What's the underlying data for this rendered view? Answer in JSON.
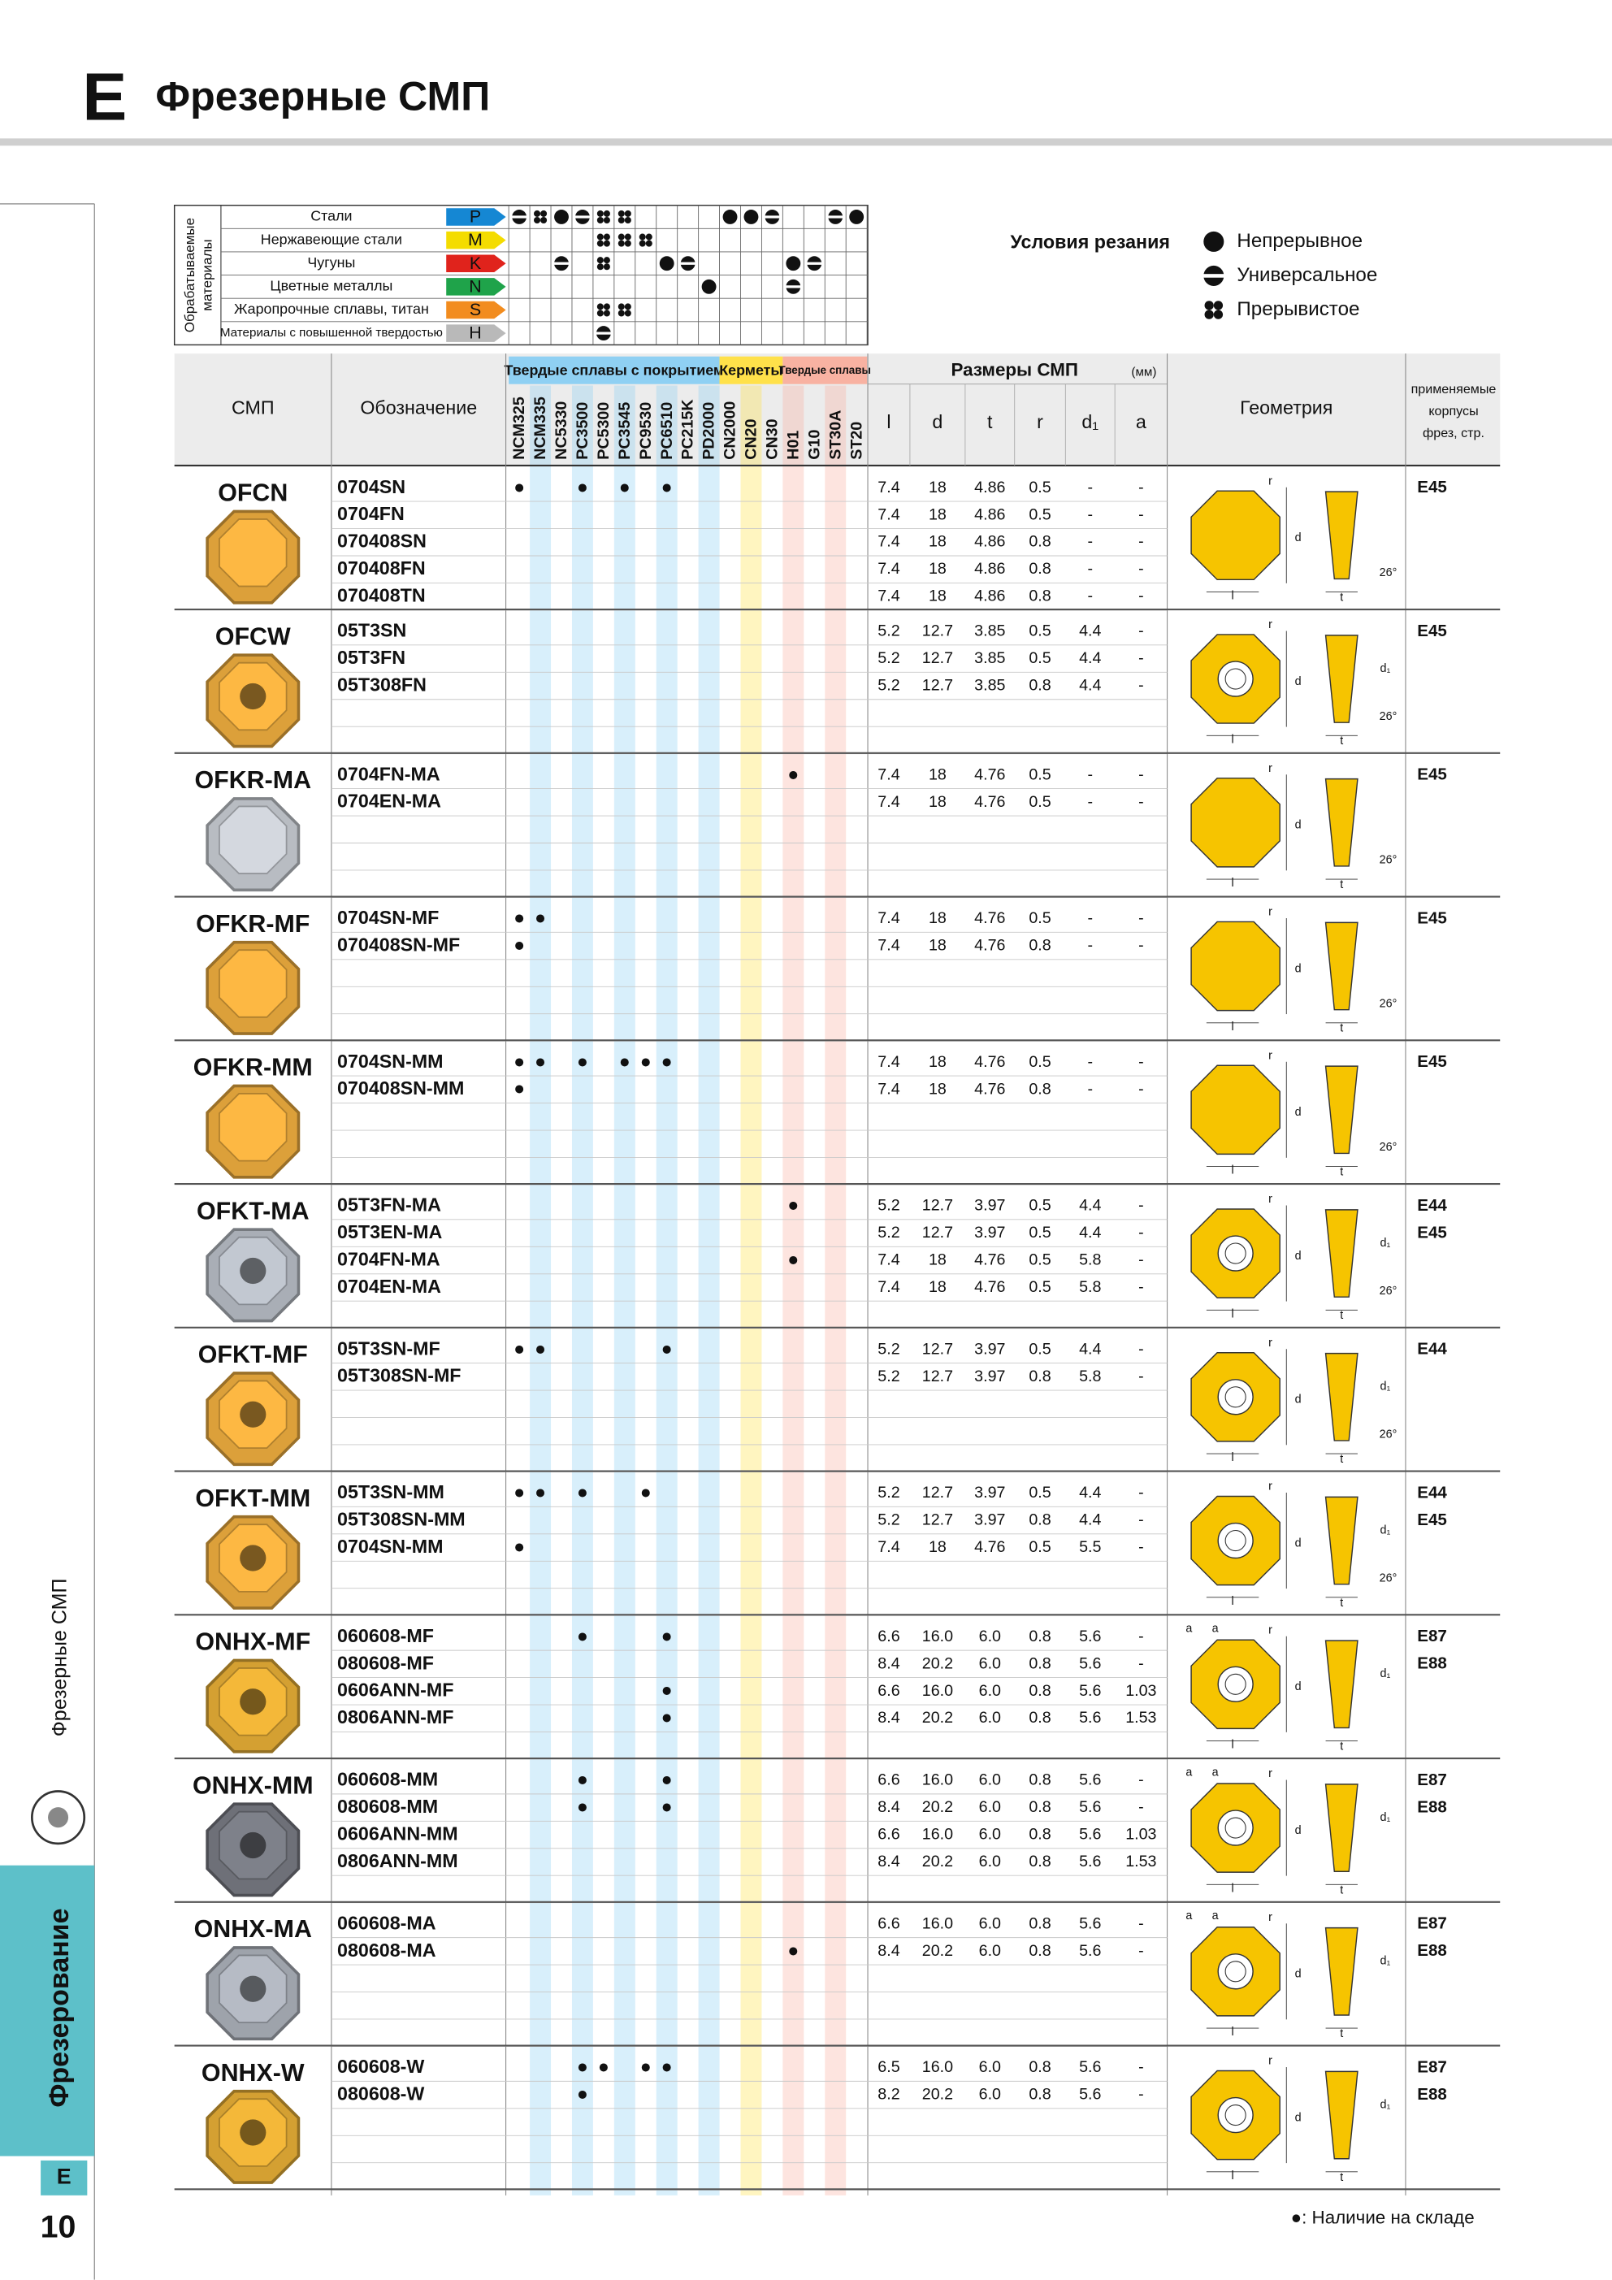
{
  "header": {
    "letter": "E",
    "title": "Фрезерные СМП"
  },
  "sidebar": {
    "section": "Фрезерные СМП",
    "chapter": "Фрезерование",
    "letter": "E",
    "page": "10"
  },
  "materials": {
    "title_lines": [
      "Обрабатываемые",
      "материалы"
    ],
    "rows": [
      {
        "name": "Стали",
        "code": "P",
        "color": "#1587d3",
        "marks": [
          1,
          2,
          0,
          1,
          2,
          2,
          null,
          null,
          null,
          null,
          0,
          0,
          1,
          null,
          null,
          1,
          0
        ]
      },
      {
        "name": "Нержавеющие стали",
        "code": "M",
        "color": "#f4dc00",
        "marks": [
          null,
          null,
          null,
          null,
          2,
          2,
          2,
          null,
          null,
          null,
          null,
          null,
          null,
          null,
          null,
          null,
          null
        ]
      },
      {
        "name": "Чугуны",
        "code": "K",
        "color": "#e0231c",
        "marks": [
          null,
          null,
          1,
          null,
          2,
          null,
          null,
          0,
          1,
          null,
          null,
          null,
          null,
          0,
          1,
          null,
          null
        ]
      },
      {
        "name": "Цветные металлы",
        "code": "N",
        "color": "#1fa34a",
        "marks": [
          null,
          null,
          null,
          null,
          null,
          null,
          null,
          null,
          null,
          0,
          null,
          null,
          null,
          1,
          null,
          null,
          null
        ]
      },
      {
        "name": "Жаропрочные сплавы, титан",
        "code": "S",
        "color": "#f28c1e",
        "marks": [
          null,
          null,
          null,
          null,
          2,
          2,
          null,
          null,
          null,
          null,
          null,
          null,
          null,
          null,
          null,
          null,
          null
        ]
      },
      {
        "name": "Материалы с повышенной твердостью",
        "code": "H",
        "color": "#b9b9b9",
        "marks": [
          null,
          null,
          null,
          null,
          1,
          null,
          null,
          null,
          null,
          null,
          null,
          null,
          null,
          null,
          null,
          null,
          null
        ]
      }
    ]
  },
  "legend": {
    "title": "Условия резания",
    "items": [
      "Непрерывное",
      "Универсальное",
      "Прерывистое"
    ]
  },
  "table": {
    "col_insert": "СМП",
    "col_code": "Обозначение",
    "grade_groups": [
      {
        "label": "Твердые сплавы с покрытием",
        "color": "#8fd0f3",
        "grades": [
          "NCM325",
          "NCM335",
          "NC5330",
          "PC3500",
          "PC5300",
          "PC3545",
          "PC9530",
          "PC6510",
          "PC215K",
          "PD2000"
        ]
      },
      {
        "label": "Керметы",
        "color": "#ffe14a",
        "grades": [
          "CN2000",
          "CN20",
          "CN30"
        ]
      },
      {
        "label": "Твердые сплавы",
        "color": "#f8b2a2",
        "grades": [
          "H01",
          "G10",
          "ST30A",
          "ST20"
        ]
      }
    ],
    "dims_title": "Размеры СМП",
    "dims_unit": "(мм)",
    "dims": [
      "l",
      "d",
      "t",
      "r",
      "d₁",
      "a"
    ],
    "col_geometry": "Геометрия",
    "col_bodies": [
      "применяемые",
      "корпусы",
      "фрез, стр."
    ]
  },
  "products": [
    {
      "name": "OFCN",
      "color": "#dca03a",
      "bodies": [
        "E45"
      ],
      "geometry": [
        "r",
        "d",
        "l",
        "t",
        "26°"
      ],
      "codes": [
        {
          "code": "0704SN",
          "dims": [
            "7.4",
            "18",
            "4.86",
            "0.5",
            "-",
            "-"
          ],
          "stock": [
            "●",
            null,
            null,
            "●",
            null,
            "●",
            null,
            "●",
            null,
            null,
            null,
            null,
            null,
            null,
            null,
            null,
            null
          ]
        },
        {
          "code": "0704FN",
          "dims": [
            "7.4",
            "18",
            "4.86",
            "0.5",
            "-",
            "-"
          ]
        },
        {
          "code": "070408SN",
          "dims": [
            "7.4",
            "18",
            "4.86",
            "0.8",
            "-",
            "-"
          ]
        },
        {
          "code": "070408FN",
          "dims": [
            "7.4",
            "18",
            "4.86",
            "0.8",
            "-",
            "-"
          ]
        },
        {
          "code": "070408TN",
          "dims": [
            "7.4",
            "18",
            "4.86",
            "0.8",
            "-",
            "-"
          ]
        }
      ]
    },
    {
      "name": "OFCW",
      "color": "#dca03a",
      "bodies": [
        "E45"
      ],
      "geometry": [
        "r",
        "d",
        "d₁",
        "l",
        "t",
        "26°"
      ],
      "codes": [
        {
          "code": "05T3SN",
          "dims": [
            "5.2",
            "12.7",
            "3.85",
            "0.5",
            "4.4",
            "-"
          ]
        },
        {
          "code": "05T3FN",
          "dims": [
            "5.2",
            "12.7",
            "3.85",
            "0.5",
            "4.4",
            "-"
          ]
        },
        {
          "code": "05T308FN",
          "dims": [
            "5.2",
            "12.7",
            "3.85",
            "0.8",
            "4.4",
            "-"
          ]
        }
      ]
    },
    {
      "name": "OFKR-MA",
      "color": "#b8bcc2",
      "bodies": [
        "E45"
      ],
      "geometry": [
        "r",
        "d",
        "l",
        "t",
        "26°"
      ],
      "codes": [
        {
          "code": "0704FN-MA",
          "dims": [
            "7.4",
            "18",
            "4.76",
            "0.5",
            "-",
            "-"
          ],
          "stock": [
            null,
            null,
            null,
            null,
            null,
            null,
            null,
            null,
            null,
            null,
            null,
            null,
            null,
            "●",
            null,
            null,
            null
          ]
        },
        {
          "code": "0704EN-MA",
          "dims": [
            "7.4",
            "18",
            "4.76",
            "0.5",
            "-",
            "-"
          ]
        }
      ]
    },
    {
      "name": "OFKR-MF",
      "color": "#dca03a",
      "bodies": [
        "E45"
      ],
      "geometry": [
        "r",
        "d",
        "l",
        "t",
        "26°"
      ],
      "codes": [
        {
          "code": "0704SN-MF",
          "dims": [
            "7.4",
            "18",
            "4.76",
            "0.5",
            "-",
            "-"
          ],
          "stock": [
            "●",
            "●",
            null,
            null,
            null,
            null,
            null,
            null,
            null,
            null,
            null,
            null,
            null,
            null,
            null,
            null,
            null
          ]
        },
        {
          "code": "070408SN-MF",
          "dims": [
            "7.4",
            "18",
            "4.76",
            "0.8",
            "-",
            "-"
          ],
          "stock": [
            "●",
            null,
            null,
            null,
            null,
            null,
            null,
            null,
            null,
            null,
            null,
            null,
            null,
            null,
            null,
            null,
            null
          ]
        }
      ]
    },
    {
      "name": "OFKR-MM",
      "color": "#dca03a",
      "bodies": [
        "E45"
      ],
      "geometry": [
        "r",
        "d",
        "l",
        "t",
        "26°"
      ],
      "codes": [
        {
          "code": "0704SN-MM",
          "dims": [
            "7.4",
            "18",
            "4.76",
            "0.5",
            "-",
            "-"
          ],
          "stock": [
            "●",
            "●",
            null,
            "●",
            null,
            "●",
            "●",
            "●",
            null,
            null,
            null,
            null,
            null,
            null,
            null,
            null,
            null
          ]
        },
        {
          "code": "070408SN-MM",
          "dims": [
            "7.4",
            "18",
            "4.76",
            "0.8",
            "-",
            "-"
          ],
          "stock": [
            "●",
            null,
            null,
            null,
            null,
            null,
            null,
            null,
            null,
            null,
            null,
            null,
            null,
            null,
            null,
            null,
            null
          ]
        }
      ]
    },
    {
      "name": "OFKT-MA",
      "color": "#a9aeb6",
      "bodies": [
        "E44",
        "E45"
      ],
      "geometry": [
        "r",
        "d",
        "d₁",
        "l",
        "t",
        "26°"
      ],
      "codes": [
        {
          "code": "05T3FN-MA",
          "dims": [
            "5.2",
            "12.7",
            "3.97",
            "0.5",
            "4.4",
            "-"
          ],
          "stock": [
            null,
            null,
            null,
            null,
            null,
            null,
            null,
            null,
            null,
            null,
            null,
            null,
            null,
            "●",
            null,
            null,
            null
          ]
        },
        {
          "code": "05T3EN-MA",
          "dims": [
            "5.2",
            "12.7",
            "3.97",
            "0.5",
            "4.4",
            "-"
          ]
        },
        {
          "code": "0704FN-MA",
          "dims": [
            "7.4",
            "18",
            "4.76",
            "0.5",
            "5.8",
            "-"
          ],
          "stock": [
            null,
            null,
            null,
            null,
            null,
            null,
            null,
            null,
            null,
            null,
            null,
            null,
            null,
            "●",
            null,
            null,
            null
          ]
        },
        {
          "code": "0704EN-MA",
          "dims": [
            "7.4",
            "18",
            "4.76",
            "0.5",
            "5.8",
            "-"
          ]
        }
      ]
    },
    {
      "name": "OFKT-MF",
      "color": "#dca03a",
      "bodies": [
        "E44"
      ],
      "geometry": [
        "r",
        "d",
        "d₁",
        "l",
        "t",
        "26°"
      ],
      "codes": [
        {
          "code": "05T3SN-MF",
          "dims": [
            "5.2",
            "12.7",
            "3.97",
            "0.5",
            "4.4",
            "-"
          ],
          "stock": [
            "●",
            "●",
            null,
            null,
            null,
            null,
            null,
            "●",
            null,
            null,
            null,
            null,
            null,
            null,
            null,
            null,
            null
          ]
        },
        {
          "code": "05T308SN-MF",
          "dims": [
            "5.2",
            "12.7",
            "3.97",
            "0.8",
            "5.8",
            "-"
          ]
        }
      ]
    },
    {
      "name": "OFKT-MM",
      "color": "#dca03a",
      "bodies": [
        "E44",
        "E45"
      ],
      "geometry": [
        "r",
        "d",
        "d₁",
        "l",
        "t",
        "26°"
      ],
      "codes": [
        {
          "code": "05T3SN-MM",
          "dims": [
            "5.2",
            "12.7",
            "3.97",
            "0.5",
            "4.4",
            "-"
          ],
          "stock": [
            "●",
            "●",
            null,
            "●",
            null,
            null,
            "●",
            null,
            null,
            null,
            null,
            null,
            null,
            null,
            null,
            null,
            null
          ]
        },
        {
          "code": "05T308SN-MM",
          "dims": [
            "5.2",
            "12.7",
            "3.97",
            "0.8",
            "4.4",
            "-"
          ]
        },
        {
          "code": "0704SN-MM",
          "dims": [
            "7.4",
            "18",
            "4.76",
            "0.5",
            "5.5",
            "-"
          ],
          "stock": [
            "●",
            null,
            null,
            null,
            null,
            null,
            null,
            null,
            null,
            null,
            null,
            null,
            null,
            null,
            null,
            null,
            null
          ]
        }
      ]
    },
    {
      "name": "ONHX-MF",
      "color": "#d4a032",
      "bodies": [
        "E87",
        "E88"
      ],
      "geometry": [
        "a",
        "a",
        "r",
        "d",
        "d₁",
        "l",
        "t"
      ],
      "codes": [
        {
          "code": "060608-MF",
          "dims": [
            "6.6",
            "16.0",
            "6.0",
            "0.8",
            "5.6",
            "-"
          ],
          "stock": [
            null,
            null,
            null,
            "●",
            null,
            null,
            null,
            "●",
            null,
            null,
            null,
            null,
            null,
            null,
            null,
            null,
            null
          ]
        },
        {
          "code": "080608-MF",
          "dims": [
            "8.4",
            "20.2",
            "6.0",
            "0.8",
            "5.6",
            "-"
          ]
        },
        {
          "code": "0606ANN-MF",
          "dims": [
            "6.6",
            "16.0",
            "6.0",
            "0.8",
            "5.6",
            "1.03"
          ],
          "stock": [
            null,
            null,
            null,
            null,
            null,
            null,
            null,
            "●",
            null,
            null,
            null,
            null,
            null,
            null,
            null,
            null,
            null
          ]
        },
        {
          "code": "0806ANN-MF",
          "dims": [
            "8.4",
            "20.2",
            "6.0",
            "0.8",
            "5.6",
            "1.53"
          ],
          "stock": [
            null,
            null,
            null,
            null,
            null,
            null,
            null,
            "●",
            null,
            null,
            null,
            null,
            null,
            null,
            null,
            null,
            null
          ]
        }
      ]
    },
    {
      "name": "ONHX-MM",
      "color": "#6e7078",
      "bodies": [
        "E87",
        "E88"
      ],
      "geometry": [
        "a",
        "a",
        "r",
        "d",
        "d₁",
        "l",
        "t"
      ],
      "codes": [
        {
          "code": "060608-MM",
          "dims": [
            "6.6",
            "16.0",
            "6.0",
            "0.8",
            "5.6",
            "-"
          ],
          "stock": [
            null,
            null,
            null,
            "●",
            null,
            null,
            null,
            "●",
            null,
            null,
            null,
            null,
            null,
            null,
            null,
            null,
            null
          ]
        },
        {
          "code": "080608-MM",
          "dims": [
            "8.4",
            "20.2",
            "6.0",
            "0.8",
            "5.6",
            "-"
          ],
          "stock": [
            null,
            null,
            null,
            "●",
            null,
            null,
            null,
            "●",
            null,
            null,
            null,
            null,
            null,
            null,
            null,
            null,
            null
          ]
        },
        {
          "code": "0606ANN-MM",
          "dims": [
            "6.6",
            "16.0",
            "6.0",
            "0.8",
            "5.6",
            "1.03"
          ]
        },
        {
          "code": "0806ANN-MM",
          "dims": [
            "8.4",
            "20.2",
            "6.0",
            "0.8",
            "5.6",
            "1.53"
          ]
        }
      ]
    },
    {
      "name": "ONHX-MA",
      "color": "#9ea3ab",
      "bodies": [
        "E87",
        "E88"
      ],
      "geometry": [
        "a",
        "a",
        "r",
        "d",
        "d₁",
        "l",
        "t"
      ],
      "codes": [
        {
          "code": "060608-MA",
          "dims": [
            "6.6",
            "16.0",
            "6.0",
            "0.8",
            "5.6",
            "-"
          ]
        },
        {
          "code": "080608-MA",
          "dims": [
            "8.4",
            "20.2",
            "6.0",
            "0.8",
            "5.6",
            "-"
          ],
          "stock": [
            null,
            null,
            null,
            null,
            null,
            null,
            null,
            null,
            null,
            null,
            null,
            null,
            null,
            "●",
            null,
            null,
            null
          ]
        }
      ]
    },
    {
      "name": "ONHX-W",
      "color": "#d4a032",
      "bodies": [
        "E87",
        "E88"
      ],
      "geometry": [
        "r",
        "d",
        "d₁",
        "l",
        "t"
      ],
      "codes": [
        {
          "code": "060608-W",
          "dims": [
            "6.5",
            "16.0",
            "6.0",
            "0.8",
            "5.6",
            "-"
          ],
          "stock": [
            null,
            null,
            null,
            "●",
            "●",
            null,
            "●",
            "●",
            null,
            null,
            null,
            null,
            null,
            null,
            null,
            null,
            null
          ]
        },
        {
          "code": "080608-W",
          "dims": [
            "8.2",
            "20.2",
            "6.0",
            "0.8",
            "5.6",
            "-"
          ],
          "stock": [
            null,
            null,
            null,
            "●",
            null,
            null,
            null,
            null,
            null,
            null,
            null,
            null,
            null,
            null,
            null,
            null,
            null
          ]
        }
      ]
    }
  ],
  "footnote": "●: Наличие на складе"
}
